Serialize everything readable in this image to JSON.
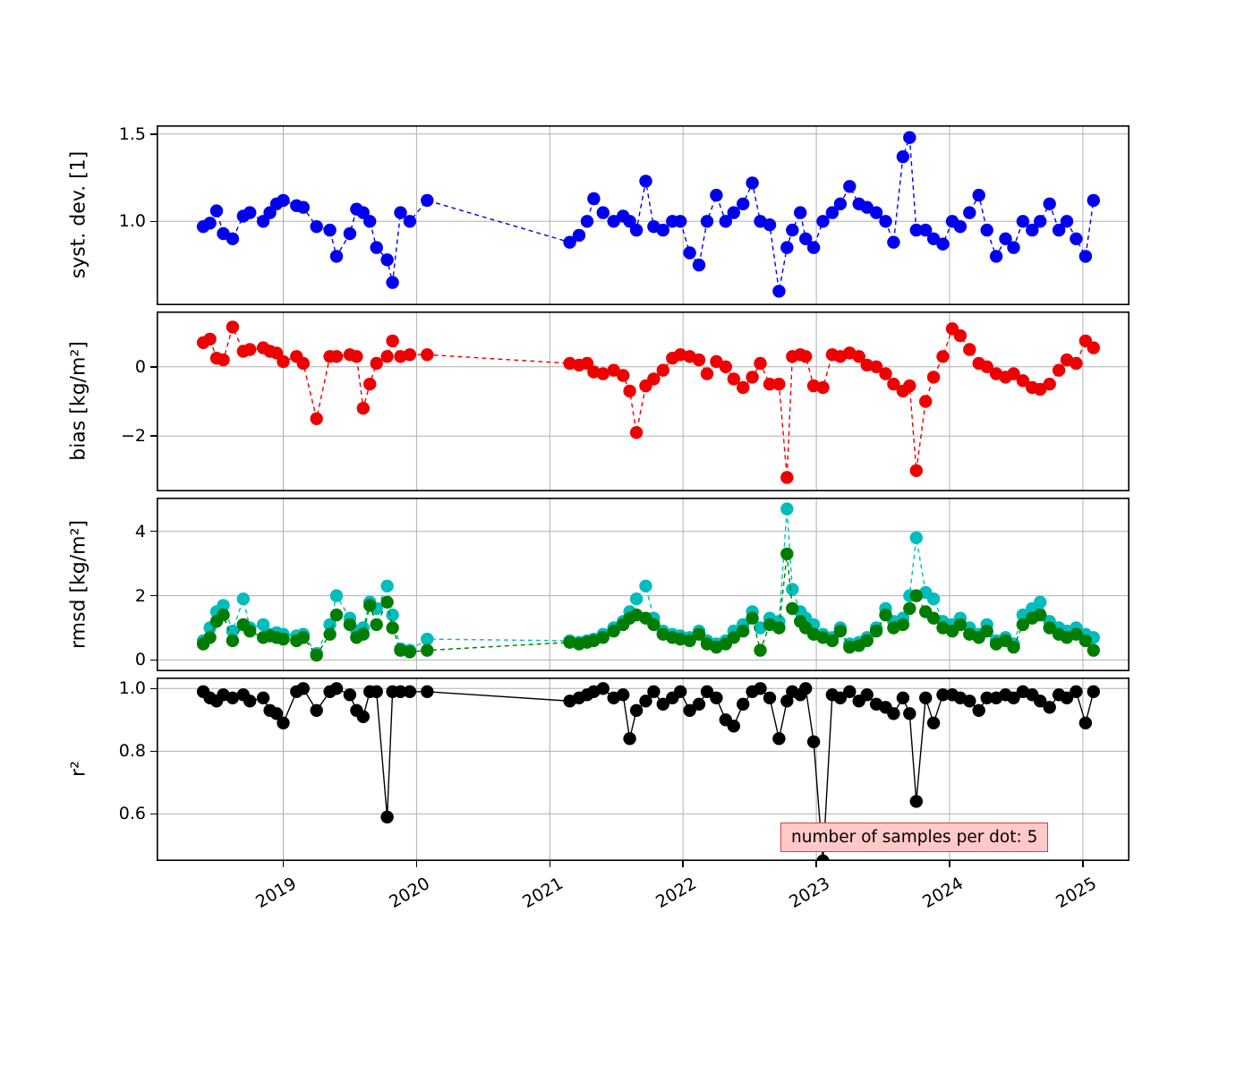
{
  "chart_data": {
    "type": "line",
    "title": "",
    "grid": true,
    "annotation": {
      "text": "number of samples per dot: 5",
      "bg_color": "#ffc9c9",
      "border_color": "#e53935"
    },
    "x_axis": {
      "label": "",
      "range": [
        2018.05,
        2025.35
      ],
      "ticks": [
        2019,
        2020,
        2021,
        2022,
        2023,
        2024,
        2025
      ],
      "tick_labels": [
        "2019",
        "2020",
        "2021",
        "2022",
        "2023",
        "2024",
        "2025"
      ]
    },
    "x": [
      2018.4,
      2018.45,
      2018.5,
      2018.55,
      2018.62,
      2018.7,
      2018.75,
      2018.85,
      2018.9,
      2018.95,
      2019.0,
      2019.1,
      2019.15,
      2019.25,
      2019.35,
      2019.4,
      2019.5,
      2019.55,
      2019.6,
      2019.65,
      2019.7,
      2019.78,
      2019.82,
      2019.88,
      2019.95,
      2020.08,
      2021.15,
      2021.22,
      2021.28,
      2021.33,
      2021.4,
      2021.48,
      2021.55,
      2021.6,
      2021.65,
      2021.72,
      2021.78,
      2021.85,
      2021.92,
      2021.98,
      2022.05,
      2022.12,
      2022.18,
      2022.25,
      2022.32,
      2022.38,
      2022.45,
      2022.52,
      2022.58,
      2022.65,
      2022.72,
      2022.78,
      2022.82,
      2022.88,
      2022.92,
      2022.98,
      2023.05,
      2023.12,
      2023.18,
      2023.25,
      2023.32,
      2023.38,
      2023.45,
      2023.52,
      2023.58,
      2023.65,
      2023.7,
      2023.75,
      2023.82,
      2023.88,
      2023.95,
      2024.02,
      2024.08,
      2024.15,
      2024.22,
      2024.28,
      2024.35,
      2024.42,
      2024.48,
      2024.55,
      2024.62,
      2024.68,
      2024.75,
      2024.82,
      2024.88,
      2024.95,
      2025.02,
      2025.08
    ],
    "panels": [
      {
        "id": "systdev",
        "ylabel": "syst. dev. [1]",
        "ylim": [
          0.52,
          1.55
        ],
        "yticks": [
          1.0,
          1.5
        ],
        "ytick_labels": [
          "1.0",
          "1.5"
        ],
        "series": [
          {
            "name": "syst_dev",
            "color": "#0000ee",
            "line": "dashed",
            "values": [
              0.97,
              0.99,
              1.06,
              0.93,
              0.9,
              1.03,
              1.05,
              1.0,
              1.05,
              1.1,
              1.12,
              1.09,
              1.08,
              0.97,
              0.95,
              0.8,
              0.93,
              1.07,
              1.05,
              1.0,
              0.85,
              0.78,
              0.65,
              1.05,
              1.0,
              1.12,
              0.88,
              0.92,
              1.0,
              1.13,
              1.05,
              1.0,
              1.03,
              1.0,
              0.95,
              1.23,
              0.97,
              0.95,
              1.0,
              1.0,
              0.82,
              0.75,
              1.0,
              1.15,
              1.0,
              1.05,
              1.1,
              1.22,
              1.0,
              0.98,
              0.6,
              0.85,
              0.95,
              1.05,
              0.9,
              0.85,
              1.0,
              1.05,
              1.1,
              1.2,
              1.1,
              1.08,
              1.05,
              1.0,
              0.88,
              1.37,
              1.48,
              0.95,
              0.95,
              0.9,
              0.87,
              1.0,
              0.97,
              1.05,
              1.15,
              0.95,
              0.8,
              0.9,
              0.85,
              1.0,
              0.95,
              1.0,
              1.1,
              0.95,
              1.0,
              0.9,
              0.8,
              1.12
            ]
          }
        ]
      },
      {
        "id": "bias",
        "ylabel": "bias [kg/m²]",
        "ylim": [
          -3.6,
          1.6
        ],
        "yticks": [
          -2,
          0
        ],
        "ytick_labels": [
          "−2",
          "0"
        ],
        "series": [
          {
            "name": "bias",
            "color": "#ee0000",
            "line": "dashed",
            "values": [
              0.7,
              0.8,
              0.25,
              0.2,
              1.15,
              0.45,
              0.5,
              0.55,
              0.45,
              0.4,
              0.15,
              0.3,
              0.1,
              -1.5,
              0.3,
              0.3,
              0.35,
              0.3,
              -1.2,
              -0.5,
              0.1,
              0.3,
              0.75,
              0.3,
              0.35,
              0.35,
              0.1,
              0.05,
              0.1,
              -0.15,
              -0.2,
              -0.1,
              -0.25,
              -0.7,
              -1.9,
              -0.55,
              -0.35,
              -0.1,
              0.25,
              0.35,
              0.3,
              0.2,
              -0.2,
              0.15,
              0.0,
              -0.35,
              -0.6,
              -0.3,
              0.1,
              -0.5,
              -0.5,
              -3.2,
              0.3,
              0.35,
              0.3,
              -0.55,
              -0.6,
              0.35,
              0.3,
              0.4,
              0.3,
              0.05,
              0.0,
              -0.2,
              -0.5,
              -0.7,
              -0.55,
              -3.0,
              -1.0,
              -0.3,
              0.3,
              1.1,
              0.9,
              0.5,
              0.1,
              0.0,
              -0.2,
              -0.3,
              -0.2,
              -0.4,
              -0.6,
              -0.65,
              -0.5,
              -0.1,
              0.2,
              0.1,
              0.75,
              0.55
            ]
          }
        ]
      },
      {
        "id": "rmsd",
        "ylabel": "rmsd [kg/m²]",
        "ylim": [
          -0.35,
          5.05
        ],
        "yticks": [
          0,
          2,
          4
        ],
        "ytick_labels": [
          "0",
          "2",
          "4"
        ],
        "series": [
          {
            "name": "rmsd_total",
            "color": "#00bdbd",
            "line": "dashed",
            "values": [
              0.6,
              1.0,
              1.5,
              1.7,
              0.9,
              1.9,
              1.0,
              1.1,
              0.8,
              0.85,
              0.8,
              0.75,
              0.8,
              0.2,
              1.1,
              2.0,
              1.3,
              0.9,
              1.0,
              1.8,
              1.6,
              2.3,
              1.4,
              0.35,
              0.3,
              0.65,
              0.6,
              0.55,
              0.6,
              0.65,
              0.8,
              1.0,
              1.2,
              1.5,
              1.9,
              2.3,
              1.3,
              0.9,
              0.8,
              0.75,
              0.7,
              0.9,
              0.6,
              0.5,
              0.6,
              0.9,
              1.1,
              1.5,
              1.0,
              1.3,
              1.2,
              4.7,
              2.2,
              1.5,
              1.3,
              1.1,
              0.8,
              0.7,
              1.0,
              0.5,
              0.55,
              0.7,
              1.0,
              1.6,
              1.2,
              1.3,
              2.0,
              3.8,
              2.1,
              1.9,
              1.2,
              1.1,
              1.3,
              1.0,
              0.8,
              1.1,
              0.6,
              0.7,
              0.5,
              1.4,
              1.6,
              1.8,
              1.2,
              1.0,
              0.9,
              1.0,
              0.8,
              0.7
            ]
          },
          {
            "name": "rmsd_debiased",
            "color": "#007d00",
            "line": "dashed",
            "values": [
              0.5,
              0.7,
              1.2,
              1.4,
              0.6,
              1.1,
              0.9,
              0.7,
              0.75,
              0.7,
              0.65,
              0.6,
              0.7,
              0.15,
              0.8,
              1.4,
              1.1,
              0.7,
              0.8,
              1.7,
              1.1,
              1.8,
              1.0,
              0.3,
              0.25,
              0.3,
              0.55,
              0.5,
              0.55,
              0.6,
              0.7,
              0.9,
              1.1,
              1.3,
              1.4,
              1.3,
              1.1,
              0.8,
              0.7,
              0.65,
              0.6,
              0.8,
              0.5,
              0.4,
              0.5,
              0.7,
              0.9,
              1.3,
              0.3,
              1.1,
              1.0,
              3.3,
              1.6,
              1.2,
              1.0,
              0.8,
              0.7,
              0.6,
              0.9,
              0.4,
              0.45,
              0.6,
              0.9,
              1.4,
              1.0,
              1.1,
              1.6,
              2.0,
              1.5,
              1.3,
              1.0,
              0.9,
              1.1,
              0.8,
              0.7,
              0.9,
              0.5,
              0.6,
              0.4,
              1.1,
              1.3,
              1.4,
              1.0,
              0.8,
              0.7,
              0.8,
              0.6,
              0.3
            ]
          }
        ]
      },
      {
        "id": "r2",
        "ylabel": "r²",
        "ylim": [
          0.45,
          1.035
        ],
        "yticks": [
          0.6,
          0.8,
          1.0
        ],
        "ytick_labels": [
          "0.6",
          "0.8",
          "1.0"
        ],
        "series": [
          {
            "name": "r_squared",
            "color": "#000000",
            "line": "solid",
            "values": [
              0.99,
              0.97,
              0.96,
              0.98,
              0.97,
              0.98,
              0.96,
              0.97,
              0.93,
              0.92,
              0.89,
              0.99,
              1.0,
              0.93,
              0.99,
              1.0,
              0.98,
              0.93,
              0.91,
              0.99,
              0.99,
              0.59,
              0.99,
              0.99,
              0.99,
              0.99,
              0.96,
              0.97,
              0.98,
              0.99,
              1.0,
              0.97,
              0.98,
              0.84,
              0.93,
              0.96,
              0.99,
              0.95,
              0.97,
              0.99,
              0.93,
              0.95,
              0.99,
              0.97,
              0.9,
              0.88,
              0.95,
              0.99,
              1.0,
              0.97,
              0.84,
              0.96,
              0.99,
              0.98,
              1.0,
              0.83,
              0.45,
              0.98,
              0.97,
              0.99,
              0.96,
              0.98,
              0.95,
              0.94,
              0.92,
              0.97,
              0.92,
              0.64,
              0.97,
              0.89,
              0.98,
              0.98,
              0.97,
              0.96,
              0.93,
              0.97,
              0.97,
              0.98,
              0.97,
              0.99,
              0.98,
              0.96,
              0.94,
              0.98,
              0.97,
              0.99,
              0.89,
              0.99
            ]
          }
        ]
      }
    ]
  }
}
